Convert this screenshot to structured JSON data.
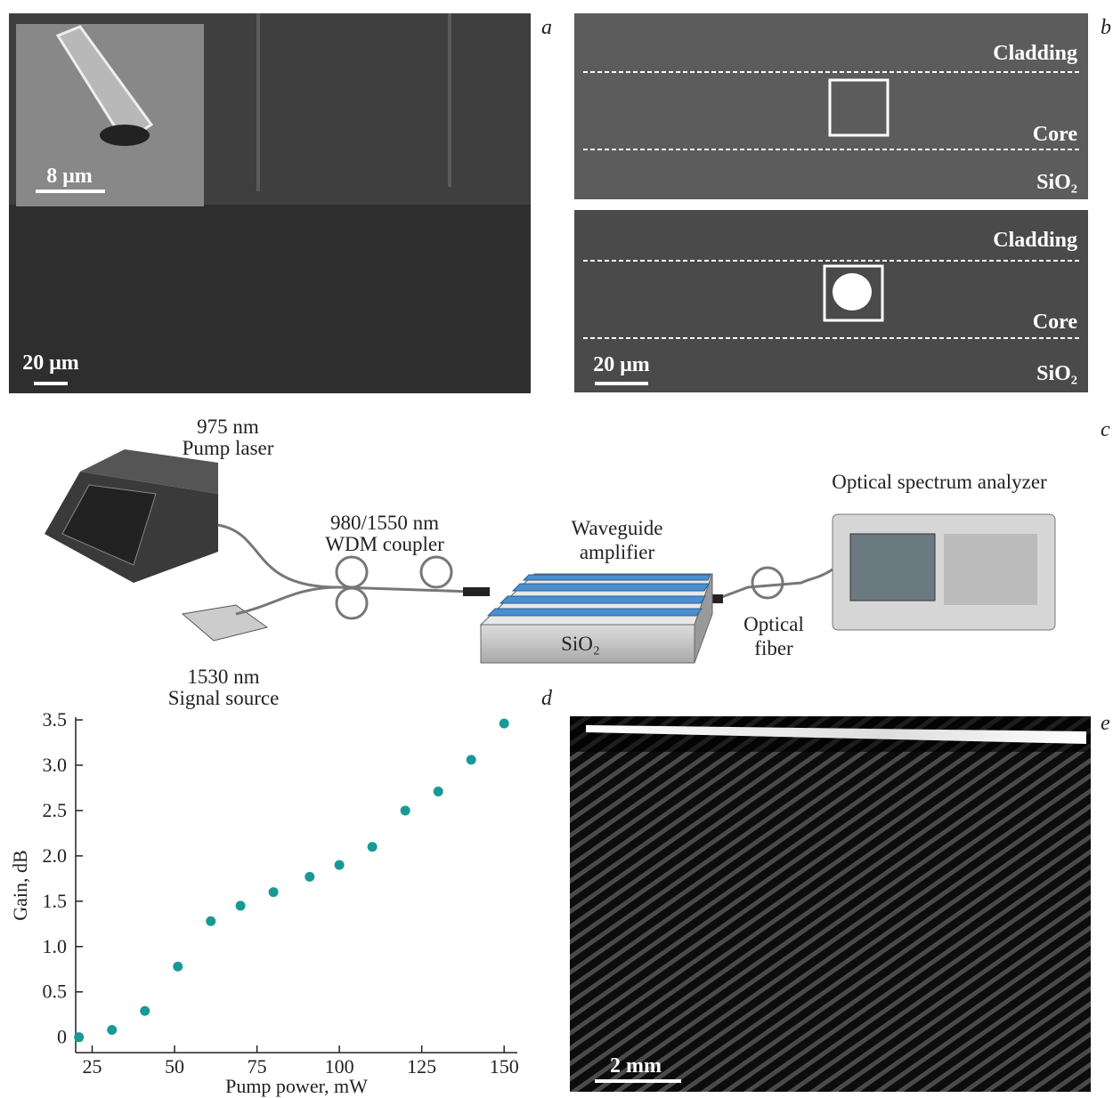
{
  "panels": {
    "a": {
      "label": "a",
      "inset_scale": "8 μm",
      "scale": "20 μm"
    },
    "b": {
      "label": "b",
      "top": {
        "cladding": "Cladding",
        "core": "Core",
        "substrate": "SiO₂"
      },
      "bottom": {
        "cladding": "Cladding",
        "core": "Core",
        "substrate": "SiO₂"
      },
      "scale": "20 μm"
    },
    "c": {
      "label": "c",
      "pump": [
        "975 nm",
        "Pump laser"
      ],
      "coupler": [
        "980/1550 nm",
        "WDM coupler"
      ],
      "amplifier": [
        "Waveguide",
        "amplifier"
      ],
      "substrate": "SiO₂",
      "analyzer": "Optical spectrum analyzer",
      "fiber": [
        "Optical",
        "fiber"
      ],
      "signal": [
        "1530 nm",
        "Signal source"
      ]
    },
    "e": {
      "label": "e",
      "scale": "2 mm"
    }
  },
  "chart_data": {
    "type": "scatter",
    "panel_label": "d",
    "x_label": "Pump power, mW",
    "y_label": "Gain, dB",
    "x": [
      21,
      31,
      41,
      51,
      61,
      70,
      80,
      91,
      100,
      110,
      120,
      130,
      140,
      150
    ],
    "values": [
      0,
      0.08,
      0.29,
      0.78,
      1.28,
      1.45,
      1.6,
      1.77,
      1.9,
      2.1,
      2.5,
      2.71,
      3.06,
      3.46
    ],
    "color": "#179a96",
    "xlim": [
      20,
      154
    ],
    "ylim": [
      -0.17,
      3.53
    ],
    "xticks": [
      25,
      50,
      75,
      100,
      125,
      150
    ],
    "yticks": [
      0,
      0.5,
      {
        "value": 1,
        "label": "1.0"
      },
      1.5,
      {
        "value": 2,
        "label": "2.0"
      },
      2.5,
      {
        "value": 3,
        "label": "3.0"
      },
      3.5
    ]
  }
}
